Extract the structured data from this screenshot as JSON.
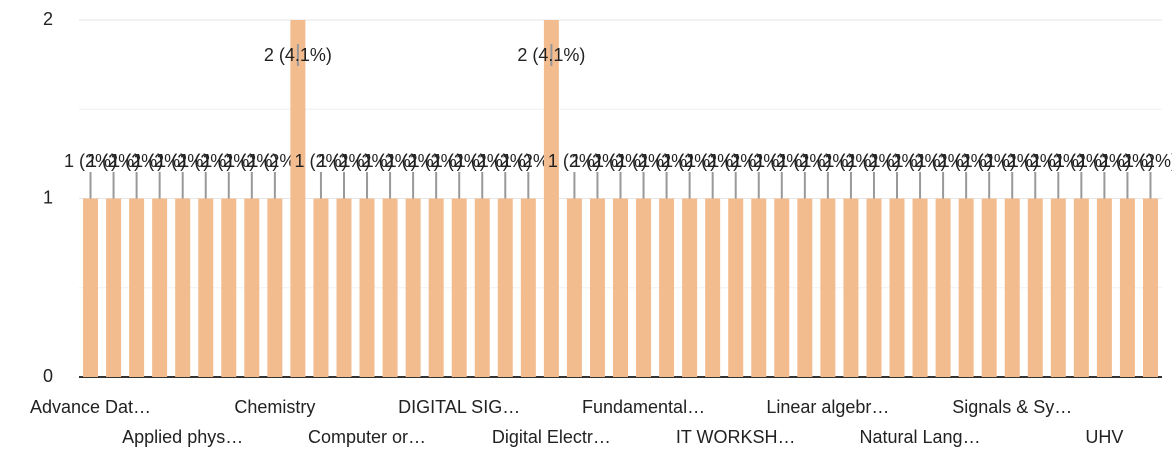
{
  "chart_data": {
    "type": "bar",
    "categories": [
      "Advance Dat…",
      null,
      null,
      null,
      "Applied phys…",
      null,
      null,
      null,
      "Chemistry",
      null,
      null,
      null,
      "Computer or…",
      null,
      null,
      null,
      "DIGITAL SIG…",
      null,
      null,
      null,
      "Digital Electr…",
      null,
      null,
      null,
      "Fundamental…",
      null,
      null,
      null,
      "IT WORKSH…",
      null,
      null,
      null,
      "Linear algebr…",
      null,
      null,
      null,
      "Natural Lang…",
      null,
      null,
      null,
      "Signals & Sy…",
      null,
      null,
      null,
      "UHV",
      null,
      null
    ],
    "values": [
      1,
      1,
      1,
      1,
      1,
      1,
      1,
      1,
      1,
      2,
      1,
      1,
      1,
      1,
      1,
      1,
      1,
      1,
      1,
      1,
      2,
      1,
      1,
      1,
      1,
      1,
      1,
      1,
      1,
      1,
      1,
      1,
      1,
      1,
      1,
      1,
      1,
      1,
      1,
      1,
      1,
      1,
      1,
      1,
      1,
      1,
      1
    ],
    "value_labels": [
      "1 (2%)",
      "1 (2%)",
      "1 (2%)",
      "1 (2%)",
      "1 (2%)",
      "1 (2%)",
      "1 (2%)",
      "1 (2%)",
      "1 (2%)",
      "2 (4.1%)",
      "1 (2%)",
      "1 (2%)",
      "1 (2%)",
      "1 (2%)",
      "1 (2%)",
      "1 (2%)",
      "1 (2%)",
      "1 (2%)",
      "1 (2%)",
      "1 (2%)",
      "2 (4.1%)",
      "1 (2%)",
      "1 (2%)",
      "1 (2%)",
      "1 (2%)",
      "1 (2%)",
      "1 (2%)",
      "1 (2%)",
      "1 (2%)",
      "1 (2%)",
      "1 (2%)",
      "1 (2%)",
      "1 (2%)",
      "1 (2%)",
      "1 (2%)",
      "1 (2%)",
      "1 (2%)",
      "1 (2%)",
      "1 (2%)",
      "1 (2%)",
      "1 (2%)",
      "1 (2%)",
      "1 (2%)",
      "1 (2%)",
      "1 (2%)",
      "1 (2%)",
      "1 (2%)"
    ],
    "color": "#f3bc8f",
    "ylim": [
      0,
      2
    ],
    "yticks": [
      0,
      1,
      2
    ],
    "minor_yticks": [
      0.5,
      1.5
    ],
    "grid": true
  }
}
